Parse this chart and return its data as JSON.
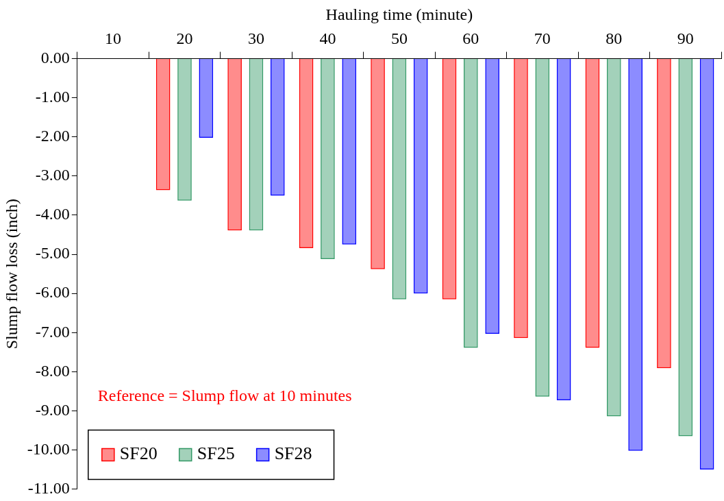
{
  "chart_data": {
    "type": "bar",
    "xlabel": "Hauling time (minute)",
    "ylabel": "Slump flow loss (inch)",
    "categories": [
      "10",
      "20",
      "30",
      "40",
      "50",
      "60",
      "70",
      "80",
      "90"
    ],
    "series": [
      {
        "name": "SF20",
        "color": "#ff0000",
        "values": [
          null,
          -3.36,
          -4.39,
          -4.84,
          -5.38,
          -6.15,
          -7.14,
          -7.39,
          -7.91
        ]
      },
      {
        "name": "SF25",
        "color": "#339966",
        "values": [
          null,
          -3.63,
          -4.39,
          -5.12,
          -6.15,
          -7.39,
          -8.64,
          -9.14,
          -9.65
        ]
      },
      {
        "name": "SF28",
        "color": "#0000ff",
        "values": [
          null,
          -2.02,
          -3.5,
          -4.75,
          -6.0,
          -7.03,
          -8.73,
          -10.02,
          -10.5
        ]
      }
    ],
    "ylim": [
      -11,
      0
    ],
    "yticks": [
      {
        "value": 0,
        "label": "0.00"
      },
      {
        "value": -1,
        "label": "-1.00"
      },
      {
        "value": -2,
        "label": "-2.00"
      },
      {
        "value": -3,
        "label": "-3.00"
      },
      {
        "value": -4,
        "label": "-4.00"
      },
      {
        "value": -5,
        "label": "-5.00"
      },
      {
        "value": -6,
        "label": "-6.00"
      },
      {
        "value": -7,
        "label": "-7.00"
      },
      {
        "value": -8,
        "label": "-8.00"
      },
      {
        "value": -9,
        "label": "-9.00"
      },
      {
        "value": -10,
        "label": "-10.00"
      },
      {
        "value": -11,
        "label": "-11.00"
      }
    ],
    "grid": false,
    "legend": "bottom left",
    "annotations": [
      "Reference = Slump flow at 10 minutes"
    ]
  }
}
